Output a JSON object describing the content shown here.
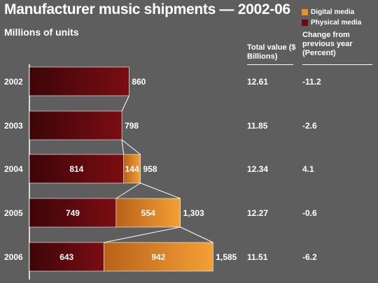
{
  "title": "Manufacturer music shipments — 2002-06",
  "subtitle": "Millions of units",
  "legend": [
    {
      "label": "Digital media",
      "color": "#e8902a"
    },
    {
      "label": "Physical media",
      "color": "#6b0b10"
    }
  ],
  "columns": {
    "total_value": "Total value ($ Billions)",
    "change": "Change from previous year (Percent)"
  },
  "chart_data": {
    "type": "bar",
    "stacked": true,
    "orientation": "horizontal",
    "title": "Manufacturer music shipments — 2002-06",
    "subtitle": "Millions of units",
    "categories": [
      "2002",
      "2003",
      "2004",
      "2005",
      "2006"
    ],
    "series": [
      {
        "name": "Physical media",
        "values": [
          860,
          798,
          814,
          749,
          643
        ],
        "color": "#6b0b10"
      },
      {
        "name": "Digital media",
        "values": [
          0,
          0,
          144,
          554,
          942
        ],
        "color": "#e8902a"
      }
    ],
    "physical_labels": [
      "",
      "",
      "814",
      "749",
      "643"
    ],
    "digital_labels": [
      "",
      "",
      "144",
      "554",
      "942"
    ],
    "totals": [
      "860",
      "798",
      "958",
      "1,303",
      "1,585"
    ],
    "total_value": [
      "12.61",
      "11.85",
      "12.34",
      "12.27",
      "11.51"
    ],
    "change_percent": [
      "-11.2",
      "-2.6",
      "4.1",
      "-0.6",
      "-6.2"
    ],
    "xlim": [
      0,
      1600
    ]
  }
}
